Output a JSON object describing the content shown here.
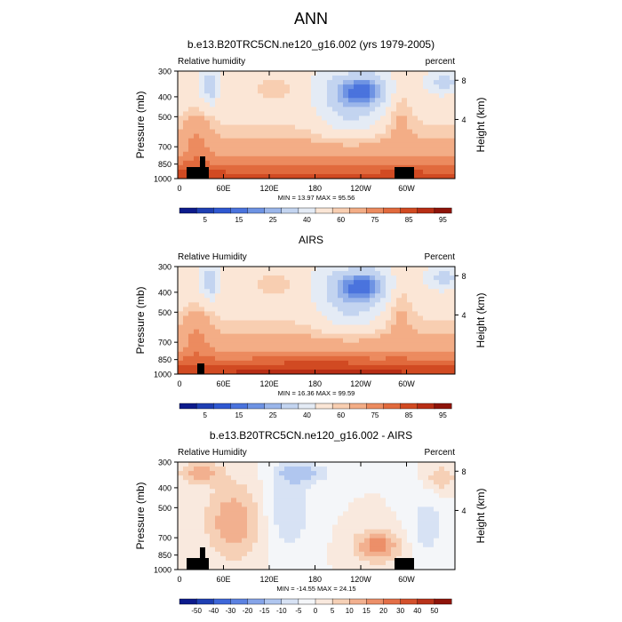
{
  "figure": {
    "title": "ANN"
  },
  "colors": {
    "rh_scale": [
      "#0d1b8c",
      "#1f3fb3",
      "#2f58d1",
      "#4a73dd",
      "#6e93e3",
      "#9bb6ea",
      "#c3d4f0",
      "#e4ebf5",
      "#fbe6d6",
      "#f8ceb1",
      "#f3ad86",
      "#ec8b5f",
      "#e16a3d",
      "#d14a22",
      "#b82e15",
      "#8e140a"
    ],
    "diff_scale": [
      "#0d1b8c",
      "#1f3fb3",
      "#3e67d9",
      "#5c82e2",
      "#86a4e8",
      "#b0c6ef",
      "#d7e2f4",
      "#f4f6f9",
      "#f9e9de",
      "#f6d0b6",
      "#f2b08f",
      "#ec8f69",
      "#e36f47",
      "#d3502c",
      "#b8321a",
      "#8e140a"
    ],
    "land_mask": "#000000"
  },
  "chart_data": [
    {
      "id": "model",
      "type": "contour",
      "title": "b.e13.B20TRC5CN.ne120_g16.002 (yrs 1979-2005)",
      "left_label": "Relative humidity",
      "right_label": "percent",
      "ylabel": "Pressure (mb)",
      "y2label": "Height (km)",
      "pressure_ticks": [
        "300",
        "400",
        "500",
        "700",
        "850",
        "1000"
      ],
      "height_ticks": [
        "8",
        "4"
      ],
      "lon_ticks": [
        "0",
        "60E",
        "120E",
        "180",
        "120W",
        "60W"
      ],
      "stats": "MIN = 13.97  MAX = 95.56",
      "colorbar_labels": [
        "5",
        "15",
        "25",
        "40",
        "60",
        "75",
        "85",
        "95"
      ],
      "scale": "rh"
    },
    {
      "id": "obs",
      "type": "contour",
      "title": "AIRS",
      "left_label": "Relative Humidity",
      "right_label": "Percent",
      "ylabel": "Pressure (mb)",
      "y2label": "Height (km)",
      "pressure_ticks": [
        "300",
        "400",
        "500",
        "700",
        "850",
        "1000"
      ],
      "height_ticks": [
        "8",
        "4"
      ],
      "lon_ticks": [
        "0",
        "60E",
        "120E",
        "180",
        "120W",
        "60W"
      ],
      "stats": "MIN = 16.36  MAX = 99.59",
      "colorbar_labels": [
        "5",
        "15",
        "25",
        "40",
        "60",
        "75",
        "85",
        "95"
      ],
      "scale": "rh"
    },
    {
      "id": "diff",
      "type": "contour",
      "title": "b.e13.B20TRC5CN.ne120_g16.002 - AIRS",
      "left_label": "Relative Humidity",
      "right_label": "Percent",
      "ylabel": "Pressure (mb)",
      "y2label": "Height (km)",
      "pressure_ticks": [
        "300",
        "400",
        "500",
        "700",
        "850",
        "1000"
      ],
      "height_ticks": [
        "8",
        "4"
      ],
      "lon_ticks": [
        "0",
        "60E",
        "120E",
        "180",
        "120W",
        "60W"
      ],
      "stats": "MIN = -14.55  MAX = 24.15",
      "colorbar_labels": [
        "-50",
        "-40",
        "-30",
        "-20",
        "-15",
        "-10",
        "-5",
        "0",
        "5",
        "10",
        "15",
        "20",
        "30",
        "40",
        "50"
      ],
      "scale": "diff"
    }
  ]
}
